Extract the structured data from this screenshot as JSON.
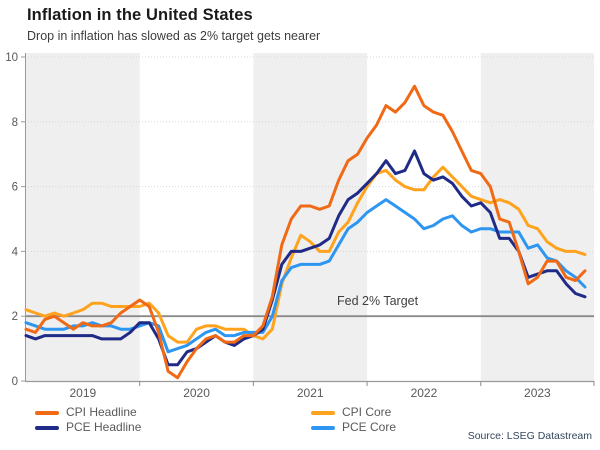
{
  "header": {
    "title": "Inflation in the United States",
    "subtitle": "Drop in inflation has slowed as 2% target gets nearer"
  },
  "footer": {
    "source": "Source: LSEG Datastream"
  },
  "annotations": {
    "fed_target_label": "Fed 2% Target"
  },
  "legend": {
    "position": "bottom",
    "items": [
      {
        "label": "CPI Headline",
        "color": "#f06a15"
      },
      {
        "label": "PCE Headline",
        "color": "#1f2b87"
      },
      {
        "label": "CPI Core",
        "color": "#ffa31e"
      },
      {
        "label": "PCE Core",
        "color": "#2e96f0"
      }
    ]
  },
  "chart_data": {
    "type": "line",
    "title": "Inflation in the United States",
    "subtitle": "Drop in inflation has slowed as 2% target gets nearer",
    "x_unit": "month",
    "x_range": "Jan 2019 - Dec 2023",
    "x_tick_labels": [
      "2019",
      "2020",
      "2021",
      "2022",
      "2023"
    ],
    "y_ticks": [
      0,
      2,
      4,
      6,
      8,
      10
    ],
    "ylim": [
      0,
      10
    ],
    "grid": "dotted horizontal at even values",
    "band_color": "#efefef",
    "target_line": {
      "value": 2,
      "label": "Fed 2% Target",
      "color": "#8a8a8a"
    },
    "legend_position": "bottom",
    "series": [
      {
        "name": "CPI Core",
        "key": "cpi_core",
        "color": "#ffa31e",
        "values": [
          2.2,
          2.1,
          2.0,
          2.1,
          2.0,
          2.1,
          2.2,
          2.4,
          2.4,
          2.3,
          2.3,
          2.3,
          2.3,
          2.4,
          2.1,
          1.4,
          1.2,
          1.2,
          1.6,
          1.7,
          1.7,
          1.6,
          1.6,
          1.6,
          1.4,
          1.3,
          1.6,
          3.0,
          3.8,
          4.5,
          4.3,
          4.0,
          4.0,
          4.6,
          4.9,
          5.5,
          6.0,
          6.4,
          6.5,
          6.2,
          6.0,
          5.9,
          5.9,
          6.3,
          6.6,
          6.3,
          6.0,
          5.7,
          5.6,
          5.5,
          5.6,
          5.5,
          5.3,
          4.8,
          4.7,
          4.3,
          4.1,
          4.0,
          4.0,
          3.9
        ]
      },
      {
        "name": "PCE Core",
        "key": "pce_core",
        "color": "#2e96f0",
        "values": [
          1.8,
          1.7,
          1.6,
          1.6,
          1.6,
          1.7,
          1.7,
          1.8,
          1.7,
          1.7,
          1.6,
          1.6,
          1.7,
          1.8,
          1.7,
          0.9,
          1.0,
          1.1,
          1.3,
          1.5,
          1.6,
          1.4,
          1.4,
          1.5,
          1.5,
          1.5,
          2.0,
          3.1,
          3.5,
          3.6,
          3.6,
          3.6,
          3.7,
          4.2,
          4.7,
          4.9,
          5.2,
          5.4,
          5.6,
          5.4,
          5.2,
          5.0,
          4.7,
          4.8,
          5.0,
          5.1,
          4.8,
          4.6,
          4.7,
          4.7,
          4.6,
          4.6,
          4.6,
          4.1,
          4.2,
          3.8,
          3.7,
          3.4,
          3.2,
          2.9
        ]
      },
      {
        "name": "PCE Headline",
        "key": "pce_headline",
        "color": "#1f2b87",
        "values": [
          1.4,
          1.3,
          1.4,
          1.4,
          1.4,
          1.4,
          1.4,
          1.4,
          1.3,
          1.3,
          1.3,
          1.5,
          1.8,
          1.8,
          1.3,
          0.5,
          0.5,
          0.9,
          1.0,
          1.2,
          1.4,
          1.2,
          1.1,
          1.3,
          1.4,
          1.6,
          2.5,
          3.6,
          4.0,
          4.0,
          4.1,
          4.2,
          4.4,
          5.1,
          5.6,
          5.8,
          6.1,
          6.4,
          6.8,
          6.4,
          6.5,
          7.1,
          6.4,
          6.2,
          6.3,
          6.1,
          5.7,
          5.4,
          5.5,
          5.2,
          4.4,
          4.4,
          4.0,
          3.2,
          3.3,
          3.4,
          3.4,
          3.0,
          2.7,
          2.6
        ]
      },
      {
        "name": "CPI Headline",
        "key": "cpi_headline",
        "color": "#f06a15",
        "values": [
          1.6,
          1.5,
          1.9,
          2.0,
          1.8,
          1.6,
          1.8,
          1.7,
          1.7,
          1.8,
          2.1,
          2.3,
          2.5,
          2.3,
          1.5,
          0.3,
          0.1,
          0.6,
          1.0,
          1.3,
          1.4,
          1.2,
          1.2,
          1.4,
          1.4,
          1.7,
          2.6,
          4.2,
          5.0,
          5.4,
          5.4,
          5.3,
          5.4,
          6.2,
          6.8,
          7.0,
          7.5,
          7.9,
          8.5,
          8.3,
          8.6,
          9.1,
          8.5,
          8.3,
          8.2,
          7.7,
          7.1,
          6.5,
          6.4,
          6.0,
          5.0,
          4.9,
          4.0,
          3.0,
          3.2,
          3.7,
          3.7,
          3.2,
          3.1,
          3.4
        ]
      }
    ]
  }
}
